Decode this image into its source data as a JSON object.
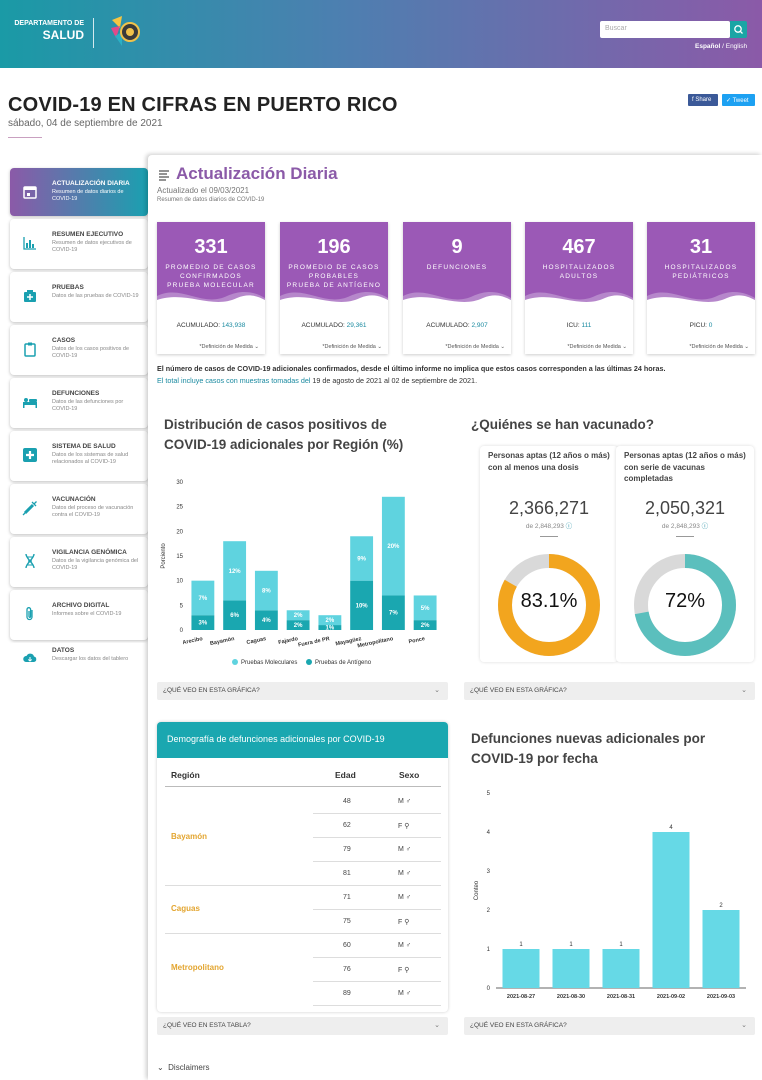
{
  "header": {
    "logo_line1": "DEPARTAMENTO DE",
    "logo_line2": "SALUD",
    "search_placeholder": "Buscar",
    "lang_es": "Español",
    "lang_sep": "/",
    "lang_en": "English"
  },
  "page": {
    "title": "COVID-19 EN CIFRAS EN PUERTO RICO",
    "date": "sábado, 04 de septiembre de 2021",
    "share": "Share",
    "tweet": "Tweet"
  },
  "sidebar": {
    "items": [
      {
        "title": "ACTUALIZACIÓN DIARIA",
        "desc": "Resumen de datos diarios de COVID-19",
        "icon": "calendar-icon"
      },
      {
        "title": "RESUMEN EJECUTIVO",
        "desc": "Resumen de datos ejecutivos de COVID-19",
        "icon": "bar-chart-icon"
      },
      {
        "title": "PRUEBAS",
        "desc": "Datos de las pruebas de COVID-19",
        "icon": "test-kit-icon"
      },
      {
        "title": "CASOS",
        "desc": "Datos de los casos positivos de COVID-19",
        "icon": "clipboard-icon"
      },
      {
        "title": "DEFUNCIONES",
        "desc": "Datos de las defunciones por COVID-19",
        "icon": "bed-icon"
      },
      {
        "title": "SISTEMA DE SALUD",
        "desc": "Datos de los sistemas de salud relacionados al COVID-19",
        "icon": "medical-cross-icon"
      },
      {
        "title": "VACUNACIÓN",
        "desc": "Datos del proceso de vacunación contra el COVID-19",
        "icon": "syringe-icon"
      },
      {
        "title": "VIGILANCIA GENÓMICA",
        "desc": "Datos de la vigilancia genómica del COVID-19",
        "icon": "dna-icon"
      },
      {
        "title": "ARCHIVO DIGITAL",
        "desc": "Informes sobre el COVID-19",
        "icon": "paperclip-icon"
      },
      {
        "title": "DATOS",
        "desc": "Descargar los datos del tablero",
        "icon": "cloud-download-icon"
      }
    ]
  },
  "daily": {
    "title": "Actualización Diaria",
    "updated": "Actualizado el 09/03/2021",
    "subtitle": "Resumen de datos diarios de COVID-19"
  },
  "cards": [
    {
      "value": "331",
      "label": "PROMEDIO DE CASOS CONFIRMADOS",
      "sub": "PRUEBA MOLECULAR",
      "acc_label": "ACUMULADO: ",
      "acc_value": "143,938",
      "def": "*Definición de Medida ⌄"
    },
    {
      "value": "196",
      "label": "PROMEDIO DE CASOS PROBABLES",
      "sub": "PRUEBA DE ANTÍGENO",
      "acc_label": "ACUMULADO: ",
      "acc_value": "29,361",
      "def": "*Definición de Medida ⌄"
    },
    {
      "value": "9",
      "label": "DEFUNCIONES",
      "sub": "",
      "acc_label": "ACUMULADO: ",
      "acc_value": "2,907",
      "def": "*Definición de Medida ⌄"
    },
    {
      "value": "467",
      "label": "HOSPITALIZADOS ADULTOS",
      "sub": "",
      "acc_label": "ICU: ",
      "acc_value": "111",
      "def": "*Definición de Medida ⌄"
    },
    {
      "value": "31",
      "label": "HOSPITALIZADOS PEDIÁTRICOS",
      "sub": "",
      "acc_label": "PICU: ",
      "acc_value": "0",
      "def": "*Definición de Medida ⌄"
    }
  ],
  "notes": {
    "line1_bold": "El número de casos de COVID-19 adicionales confirmados, desde el último informe no implica que estos casos corresponden a las últimas 24 horas.",
    "line2a": "El total incluye casos con muestras tomadas del ",
    "line2b": "19 de agosto de 2021 al 02 de septiembre de 2021",
    "line2c": "."
  },
  "region_chart": {
    "title1": "Distribución de casos positivos de",
    "title2": "COVID-19 adicionales por Región (%)",
    "question": "¿QUÉ VEO EN ESTA GRÁFICA?"
  },
  "vaccine": {
    "title": "¿Quiénes se han vacunado?",
    "question": "¿QUÉ VEO EN ESTA GRÁFICA?",
    "boxes": [
      {
        "head": "Personas aptas (12 años o más) con al menos una dosis",
        "value": "2,366,271",
        "of": "de 2,848,293",
        "pct_text": "83.1%",
        "pct": 0.831,
        "color": "#f2a51e"
      },
      {
        "head": "Personas aptas (12 años o más) con serie de vacunas completadas",
        "value": "2,050,321",
        "of": "de 2,848,293",
        "pct_text": "72%",
        "pct": 0.72,
        "color": "#5bbfbd"
      }
    ]
  },
  "deaths_table": {
    "title": "Demografía de defunciones adicionales por COVID-19",
    "col_region": "Región",
    "col_age": "Edad",
    "col_sex": "Sexo",
    "question": "¿QUÉ VEO EN ESTA TABLA?",
    "rows": [
      {
        "age": "48",
        "sex": "M",
        "sym": "♂"
      },
      {
        "age": "62",
        "sex": "F",
        "sym": "⚲"
      },
      {
        "age": "79",
        "sex": "M",
        "sym": "♂"
      },
      {
        "age": "81",
        "sex": "M",
        "sym": "♂"
      },
      {
        "age": "71",
        "sex": "M",
        "sym": "♂"
      },
      {
        "age": "75",
        "sex": "F",
        "sym": "⚲"
      },
      {
        "age": "60",
        "sex": "M",
        "sym": "♂"
      },
      {
        "age": "76",
        "sex": "F",
        "sym": "⚲"
      },
      {
        "age": "89",
        "sex": "M",
        "sym": "♂"
      }
    ],
    "regions": [
      "Bayamón",
      "Caguas",
      "Metropolitano"
    ]
  },
  "deaths_chart": {
    "title1": "Defunciones nuevas adicionales por",
    "title2": "COVID-19 por fecha",
    "question": "¿QUÉ VEO EN ESTA GRÁFICA?"
  },
  "footer": {
    "disclaimers": "Disclaimers"
  },
  "colors": {
    "purple": "#9b59b6",
    "teal": "#1aa7b0",
    "light_teal": "#5fd3df",
    "dark_teal": "#1a9aa6"
  },
  "chart_data": [
    {
      "type": "bar",
      "stacked": true,
      "categories": [
        "Arecibo",
        "Bayamón",
        "Caguas",
        "Fajardo",
        "Fuera de PR",
        "Mayagüez",
        "Metropolitano",
        "Ponce"
      ],
      "series": [
        {
          "name": "Pruebas de Antígeno",
          "values": [
            3,
            6,
            4,
            2,
            1,
            10,
            7,
            2
          ],
          "labels": [
            "3%",
            "6%",
            "4%",
            "2%",
            "1%",
            "10%",
            "7%",
            "2%"
          ]
        },
        {
          "name": "Pruebas Moleculares",
          "values": [
            7,
            12,
            8,
            2,
            2,
            9,
            20,
            5
          ],
          "labels": [
            "7%",
            "12%",
            "8%",
            "2%",
            "2%",
            "9%",
            "20%",
            "5%"
          ]
        }
      ],
      "ylabel": "Porciento",
      "ylim": [
        0,
        30
      ],
      "yticks": [
        0,
        5,
        10,
        15,
        20,
        25,
        30
      ],
      "legend": "bottom"
    },
    {
      "type": "bar",
      "categories": [
        "2021-08-27",
        "2021-08-30",
        "2021-08-31",
        "2021-09-02",
        "2021-09-03"
      ],
      "values": [
        1,
        1,
        1,
        4,
        2
      ],
      "ylabel": "Conteo",
      "ylim": [
        0,
        5
      ],
      "yticks": [
        0,
        1,
        2,
        3,
        4,
        5
      ]
    }
  ]
}
